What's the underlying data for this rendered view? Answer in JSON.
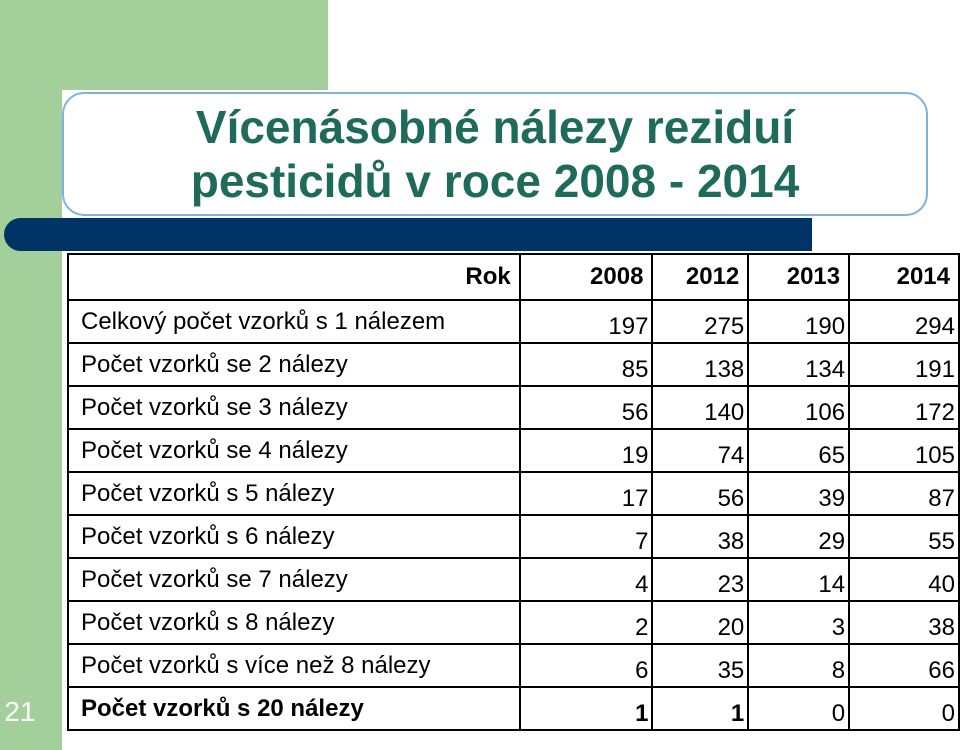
{
  "slide": {
    "number": "21",
    "title_line1": "Vícenásobné nálezy reziduí",
    "title_line2": "pesticidů v roce 2008 - 2014",
    "accent_color": "#1e6b5c",
    "green_color": "#a3cf9a",
    "blue_bar_color": "#003366",
    "highlight_color": "#e8002a"
  },
  "table": {
    "header": {
      "label": "Rok",
      "years": [
        "2008",
        "2012",
        "2013",
        "2014"
      ]
    },
    "rows": [
      {
        "label": "Celkový počet vzorků s 1 nálezem",
        "values": [
          "197",
          "275",
          "190",
          "294"
        ]
      },
      {
        "label": "Počet vzorků se 2 nálezy",
        "values": [
          "85",
          "138",
          "134",
          "191"
        ]
      },
      {
        "label": "Počet vzorků se 3 nálezy",
        "values": [
          "56",
          "140",
          "106",
          "172"
        ]
      },
      {
        "label": "Počet vzorků se 4 nálezy",
        "values": [
          "19",
          "74",
          "65",
          "105"
        ]
      },
      {
        "label": "Počet vzorků s 5 nálezy",
        "values": [
          "17",
          "56",
          "39",
          "87"
        ]
      },
      {
        "label": "Počet vzorků s 6 nálezy",
        "values": [
          "7",
          "38",
          "29",
          "55"
        ]
      },
      {
        "label": "Počet vzorků se 7 nálezy",
        "values": [
          "4",
          "23",
          "14",
          "40"
        ]
      },
      {
        "label": "Počet vzorků s 8 nálezy",
        "values": [
          "2",
          "20",
          "3",
          "38"
        ]
      },
      {
        "label": "Počet vzorků s více než 8 nálezy",
        "values": [
          "6",
          "35",
          "8",
          "66"
        ]
      },
      {
        "label": "Počet vzorků s 20 nálezy",
        "values": [
          "1",
          "1",
          "0",
          "0"
        ]
      }
    ]
  }
}
